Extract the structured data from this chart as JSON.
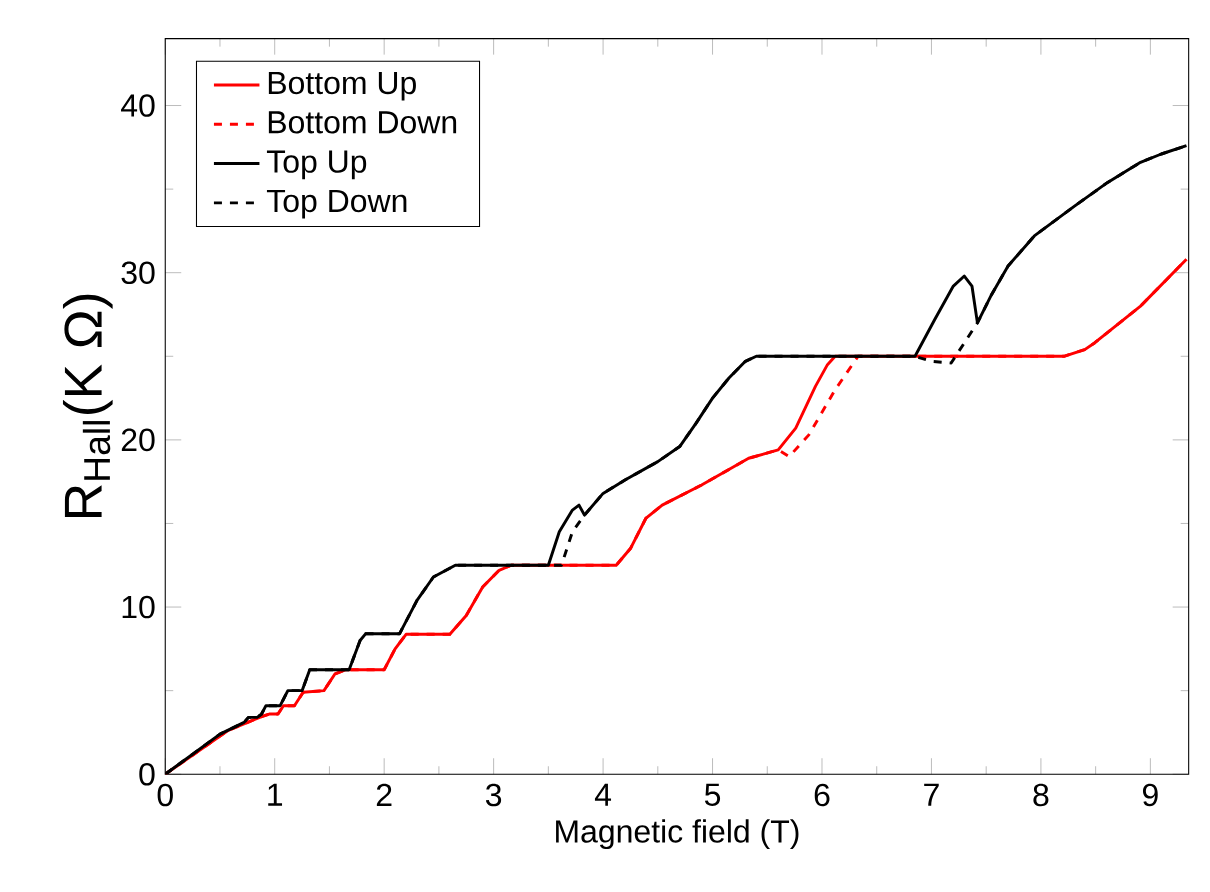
{
  "chart_data": {
    "type": "line",
    "xlabel": "Magnetic field (T)",
    "ylabel": "R$_{Hall}$(K Ω)",
    "xlim": [
      0,
      9.35
    ],
    "ylim": [
      0,
      44
    ],
    "xticks": [
      0,
      1,
      2,
      3,
      4,
      5,
      6,
      7,
      8,
      9
    ],
    "yticks": [
      0,
      10,
      20,
      30,
      40
    ],
    "grid": false,
    "legend": "top left",
    "marker": "none",
    "series": [
      {
        "name": "Bottom Up",
        "color": "#ff0000",
        "line_style": "solid",
        "x": [
          0,
          0.57,
          0.88,
          0.95,
          1.03,
          1.08,
          1.18,
          1.26,
          1.45,
          1.55,
          1.65,
          2.0,
          2.1,
          2.2,
          2.6,
          2.75,
          2.9,
          3.05,
          3.16,
          4.12,
          4.25,
          4.39,
          4.54,
          4.9,
          5.33,
          5.6,
          5.76,
          5.94,
          6.05,
          6.12,
          8.21,
          8.4,
          8.49,
          8.91,
          9.33
        ],
        "values": [
          0,
          2.6,
          3.45,
          3.6,
          3.6,
          4.1,
          4.1,
          4.9,
          5.0,
          6.0,
          6.25,
          6.25,
          7.5,
          8.37,
          8.37,
          9.5,
          11.2,
          12.2,
          12.5,
          12.5,
          13.5,
          15.3,
          16.1,
          17.3,
          18.9,
          19.4,
          20.7,
          23.2,
          24.5,
          25,
          25,
          25.4,
          25.8,
          28,
          30.8
        ]
      },
      {
        "name": "Bottom Down",
        "color": "#ff0000",
        "line_style": "dashed",
        "x": [
          0,
          0.57,
          0.88,
          0.95,
          1.03,
          1.08,
          1.18,
          1.26,
          1.45,
          1.55,
          1.65,
          2.0,
          2.1,
          2.2,
          2.6,
          2.75,
          2.9,
          3.05,
          3.16,
          4.12,
          4.25,
          4.39,
          4.54,
          4.9,
          5.33,
          5.6,
          5.7,
          5.88,
          6.12,
          6.33,
          8.21,
          8.4,
          8.49,
          8.91,
          9.33
        ],
        "values": [
          0,
          2.6,
          3.45,
          3.6,
          3.6,
          4.1,
          4.1,
          4.9,
          5.0,
          6.0,
          6.25,
          6.25,
          7.5,
          8.37,
          8.37,
          9.5,
          11.2,
          12.2,
          12.5,
          12.5,
          13.5,
          15.3,
          16.1,
          17.3,
          18.9,
          19.4,
          19.0,
          20.3,
          23.0,
          25,
          25,
          25.4,
          25.8,
          28,
          30.8
        ]
      },
      {
        "name": "Top Up",
        "color": "#000000",
        "line_style": "solid",
        "x": [
          0,
          0.5,
          0.72,
          0.76,
          0.84,
          0.88,
          0.92,
          1.05,
          1.12,
          1.25,
          1.32,
          1.68,
          1.78,
          1.83,
          2.14,
          2.3,
          2.45,
          2.65,
          3.5,
          3.6,
          3.72,
          3.78,
          3.83,
          4.0,
          4.2,
          4.5,
          4.7,
          4.85,
          5.0,
          5.15,
          5.3,
          5.4,
          6.85,
          7.03,
          7.2,
          7.3,
          7.37,
          7.42,
          7.55,
          7.7,
          7.94,
          8.31,
          8.61,
          8.91,
          9.1,
          9.33
        ],
        "values": [
          0,
          2.4,
          3.1,
          3.4,
          3.4,
          3.6,
          4.1,
          4.1,
          5.0,
          5.0,
          6.25,
          6.25,
          8.0,
          8.4,
          8.4,
          10.4,
          11.8,
          12.5,
          12.5,
          14.5,
          15.8,
          16.1,
          15.5,
          16.8,
          17.6,
          18.7,
          19.6,
          21.0,
          22.5,
          23.7,
          24.7,
          25,
          25,
          27.2,
          29.2,
          29.8,
          29.2,
          27.0,
          28.7,
          30.4,
          32.2,
          34,
          35.4,
          36.6,
          37.1,
          37.6
        ]
      },
      {
        "name": "Top Down",
        "color": "#000000",
        "line_style": "dashed",
        "x": [
          0,
          0.5,
          0.72,
          0.76,
          0.84,
          0.88,
          0.92,
          1.05,
          1.12,
          1.25,
          1.32,
          1.68,
          1.78,
          1.83,
          2.14,
          2.3,
          2.45,
          2.65,
          3.62,
          3.72,
          3.83,
          4.0,
          4.2,
          4.5,
          4.7,
          4.85,
          5.0,
          5.15,
          5.3,
          5.4,
          6.85,
          7.0,
          7.18,
          7.42,
          7.55,
          7.7,
          7.94,
          8.31,
          8.61,
          8.91,
          9.1,
          9.33
        ],
        "values": [
          0,
          2.4,
          3.1,
          3.4,
          3.4,
          3.6,
          4.1,
          4.1,
          5.0,
          5.0,
          6.25,
          6.25,
          8.0,
          8.4,
          8.4,
          10.4,
          11.8,
          12.5,
          12.5,
          14.5,
          15.5,
          16.8,
          17.6,
          18.7,
          19.6,
          21.0,
          22.5,
          23.7,
          24.7,
          25,
          25,
          24.7,
          24.6,
          27.0,
          28.7,
          30.4,
          32.2,
          34,
          35.4,
          36.6,
          37.1,
          37.6
        ]
      }
    ]
  }
}
